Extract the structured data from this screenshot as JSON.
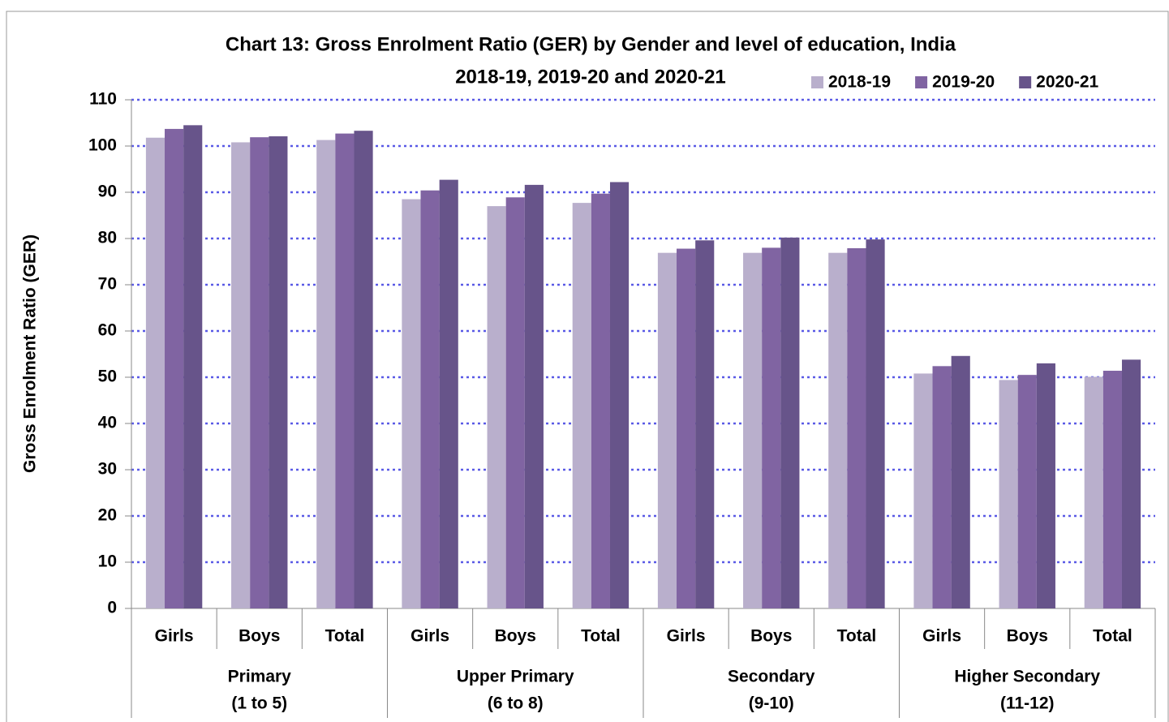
{
  "chart_data": {
    "type": "bar",
    "title": "Chart 13: Gross Enrolment Ratio (GER) by Gender and level of education, India",
    "subtitle": "2018-19, 2019-20 and 2020-21",
    "y_label": "Gross Enrolment Ratio (GER)",
    "categories": [
      "Girls",
      "Boys",
      "Total",
      "Girls",
      "Boys",
      "Total",
      "Girls",
      "Boys",
      "Total",
      "Girls",
      "Boys",
      "Total"
    ],
    "groups": [
      [
        "Primary",
        "(1 to 5)"
      ],
      [
        "Upper Primary",
        "(6 to 8)"
      ],
      [
        "Secondary",
        "(9-10)"
      ],
      [
        "Higher Secondary",
        "(11-12)"
      ]
    ],
    "series": [
      {
        "name": "2018-19",
        "color": "#b9afcc",
        "values": [
          101.8,
          100.8,
          101.3,
          88.5,
          87.0,
          87.7,
          76.9,
          76.9,
          76.9,
          50.8,
          49.4,
          50.1
        ]
      },
      {
        "name": "2019-20",
        "color": "#8064a2",
        "values": [
          103.7,
          101.9,
          102.7,
          90.4,
          88.9,
          89.7,
          77.8,
          78.0,
          77.9,
          52.4,
          50.5,
          51.4
        ]
      },
      {
        "name": "2020-21",
        "color": "#67548a",
        "values": [
          104.5,
          102.1,
          103.3,
          92.7,
          91.6,
          92.2,
          79.6,
          80.2,
          79.8,
          54.6,
          53.0,
          53.8
        ]
      }
    ],
    "ylim": [
      0,
      110
    ],
    "yticks": [
      0,
      10,
      20,
      30,
      40,
      50,
      60,
      70,
      80,
      90,
      100,
      110
    ],
    "grid": true,
    "legend": "top-right"
  }
}
